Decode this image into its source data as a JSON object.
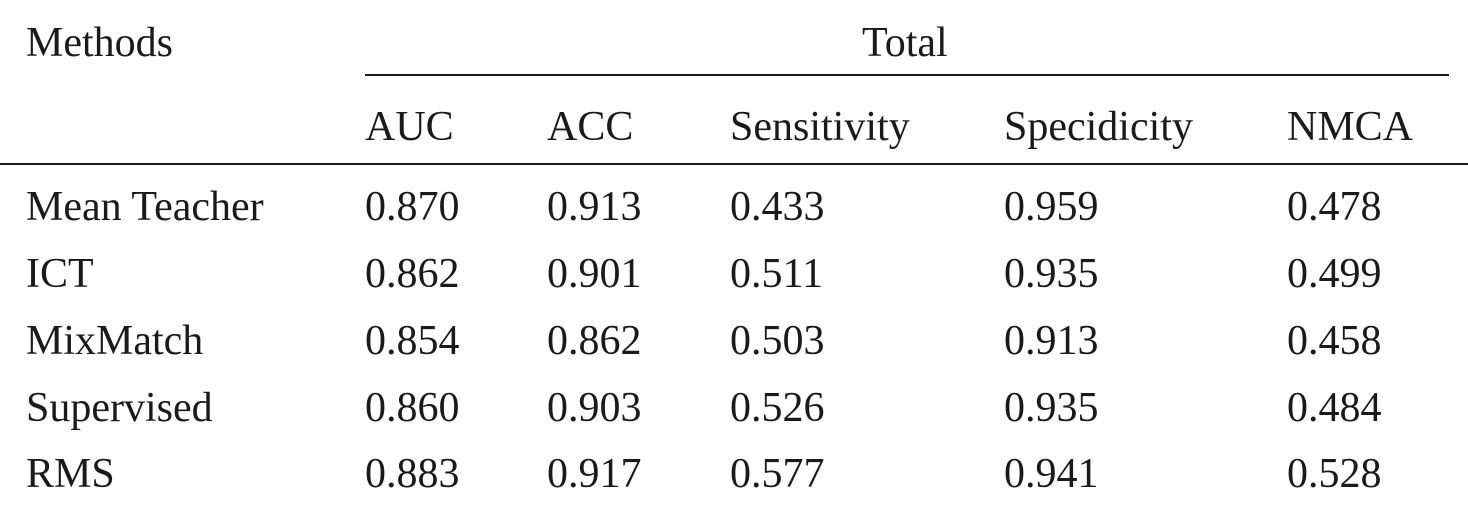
{
  "table": {
    "stub_header": "Methods",
    "group_header": "Total",
    "columns": [
      "AUC",
      "ACC",
      "Sensitivity",
      "Specidicity",
      "NMCA"
    ],
    "rows": [
      {
        "method": "Mean Teacher",
        "values": [
          "0.870",
          "0.913",
          "0.433",
          "0.959",
          "0.478"
        ]
      },
      {
        "method": "ICT",
        "values": [
          "0.862",
          "0.901",
          "0.511",
          "0.935",
          "0.499"
        ]
      },
      {
        "method": "MixMatch",
        "values": [
          "0.854",
          "0.862",
          "0.503",
          "0.913",
          "0.458"
        ]
      },
      {
        "method": "Supervised",
        "values": [
          "0.860",
          "0.903",
          "0.526",
          "0.935",
          "0.484"
        ]
      },
      {
        "method": "RMS",
        "values": [
          "0.883",
          "0.917",
          "0.577",
          "0.941",
          "0.528"
        ]
      }
    ]
  }
}
